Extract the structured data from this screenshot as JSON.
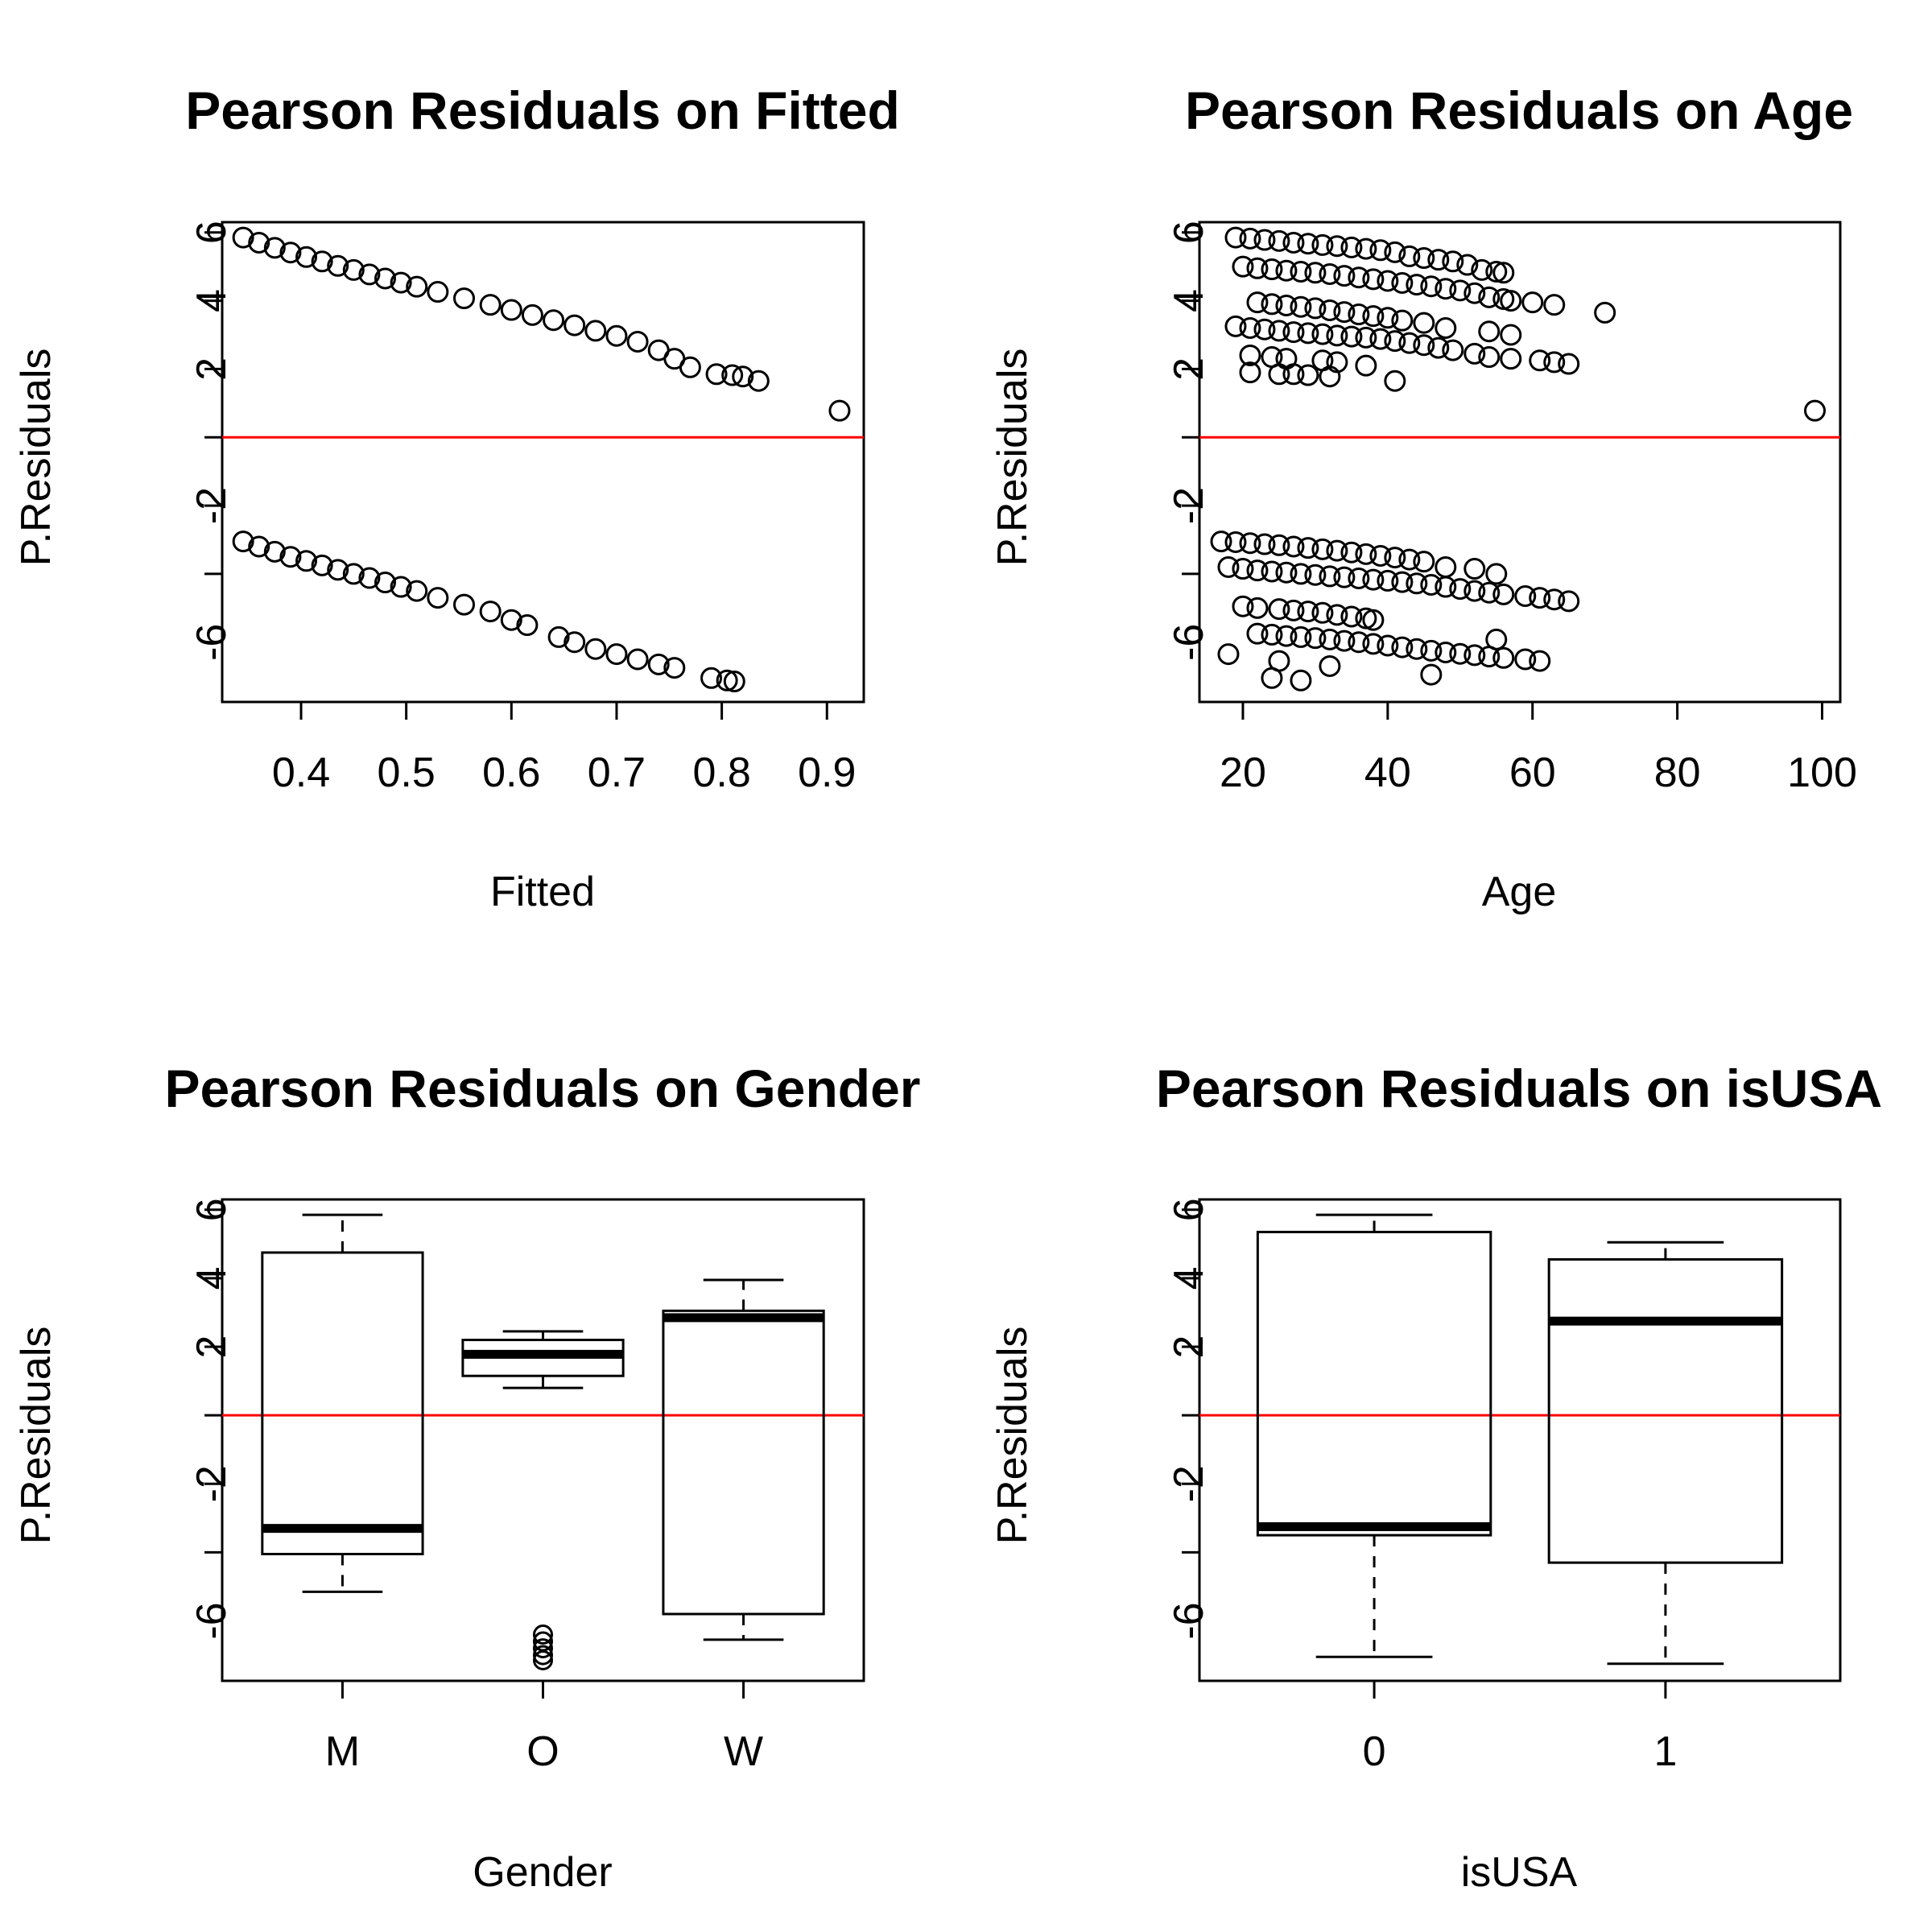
{
  "colors": {
    "reference_line": "#ff0000",
    "ink": "#000000"
  },
  "chart_data": [
    {
      "type": "scatter",
      "title": "Pearson Residuals on Fitted",
      "xlabel": "Fitted",
      "ylabel": "P.Residuals",
      "xlim": [
        0.325,
        0.935
      ],
      "ylim": [
        -7.75,
        6.3
      ],
      "xticks": [
        0.4,
        0.5,
        0.6,
        0.7,
        0.8,
        0.9
      ],
      "xtick_labels": [
        "0.4",
        "0.5",
        "0.6",
        "0.7",
        "0.8",
        "0.9"
      ],
      "yticks": [
        6,
        4,
        2,
        -2,
        -6
      ],
      "ytick_labels": [
        "6",
        "4",
        "2",
        "-2",
        "-6"
      ],
      "hline": 0,
      "series": [
        {
          "points": [
            [
              0.345,
              5.85
            ],
            [
              0.36,
              5.7
            ],
            [
              0.375,
              5.55
            ],
            [
              0.39,
              5.41
            ],
            [
              0.405,
              5.28
            ],
            [
              0.42,
              5.15
            ],
            [
              0.435,
              5.02
            ],
            [
              0.45,
              4.9
            ],
            [
              0.465,
              4.77
            ],
            [
              0.48,
              4.65
            ],
            [
              0.495,
              4.53
            ],
            [
              0.51,
              4.41
            ],
            [
              0.53,
              4.26
            ],
            [
              0.555,
              4.07
            ],
            [
              0.58,
              3.88
            ],
            [
              0.6,
              3.73
            ],
            [
              0.62,
              3.58
            ],
            [
              0.64,
              3.43
            ],
            [
              0.66,
              3.28
            ],
            [
              0.68,
              3.12
            ],
            [
              0.7,
              2.97
            ],
            [
              0.72,
              2.8
            ],
            [
              0.74,
              2.55
            ],
            [
              0.755,
              2.3
            ],
            [
              0.77,
              2.05
            ],
            [
              0.795,
              1.85
            ],
            [
              0.81,
              1.82
            ],
            [
              0.82,
              1.78
            ],
            [
              0.835,
              1.65
            ],
            [
              0.912,
              0.78
            ],
            [
              0.345,
              -3.05
            ],
            [
              0.36,
              -3.2
            ],
            [
              0.375,
              -3.35
            ],
            [
              0.39,
              -3.5
            ],
            [
              0.405,
              -3.62
            ],
            [
              0.42,
              -3.75
            ],
            [
              0.435,
              -3.88
            ],
            [
              0.45,
              -4.0
            ],
            [
              0.465,
              -4.12
            ],
            [
              0.48,
              -4.25
            ],
            [
              0.495,
              -4.38
            ],
            [
              0.51,
              -4.5
            ],
            [
              0.53,
              -4.7
            ],
            [
              0.555,
              -4.9
            ],
            [
              0.58,
              -5.1
            ],
            [
              0.6,
              -5.35
            ],
            [
              0.615,
              -5.5
            ],
            [
              0.645,
              -5.85
            ],
            [
              0.66,
              -6.0
            ],
            [
              0.68,
              -6.2
            ],
            [
              0.7,
              -6.35
            ],
            [
              0.72,
              -6.5
            ],
            [
              0.74,
              -6.65
            ],
            [
              0.755,
              -6.75
            ],
            [
              0.79,
              -7.05
            ],
            [
              0.805,
              -7.12
            ],
            [
              0.812,
              -7.15
            ]
          ]
        }
      ]
    },
    {
      "type": "scatter",
      "title": "Pearson Residuals on Age",
      "xlabel": "Age",
      "ylabel": "P.Residuals",
      "xlim": [
        14,
        102.5
      ],
      "ylim": [
        -7.75,
        6.3
      ],
      "xticks": [
        20,
        40,
        60,
        80,
        100
      ],
      "xtick_labels": [
        "20",
        "40",
        "60",
        "80",
        "100"
      ],
      "yticks": [
        6,
        4,
        2,
        -2,
        -6
      ],
      "ytick_labels": [
        "6",
        "4",
        "2",
        "-2",
        "-6"
      ],
      "hline": 0,
      "series": [
        {
          "points": [
            [
              19,
              5.85
            ],
            [
              21,
              5.82
            ],
            [
              23,
              5.78
            ],
            [
              25,
              5.75
            ],
            [
              27,
              5.7
            ],
            [
              29,
              5.67
            ],
            [
              31,
              5.63
            ],
            [
              33,
              5.6
            ],
            [
              35,
              5.56
            ],
            [
              37,
              5.52
            ],
            [
              39,
              5.48
            ],
            [
              41,
              5.42
            ],
            [
              43,
              5.3
            ],
            [
              45,
              5.25
            ],
            [
              47,
              5.2
            ],
            [
              49,
              5.15
            ],
            [
              51,
              5.05
            ],
            [
              53,
              4.9
            ],
            [
              55,
              4.85
            ],
            [
              56,
              4.82
            ],
            [
              20,
              5.0
            ],
            [
              22,
              4.95
            ],
            [
              24,
              4.92
            ],
            [
              26,
              4.88
            ],
            [
              28,
              4.85
            ],
            [
              30,
              4.82
            ],
            [
              32,
              4.78
            ],
            [
              34,
              4.73
            ],
            [
              36,
              4.68
            ],
            [
              38,
              4.63
            ],
            [
              40,
              4.58
            ],
            [
              42,
              4.52
            ],
            [
              44,
              4.47
            ],
            [
              46,
              4.42
            ],
            [
              48,
              4.35
            ],
            [
              50,
              4.3
            ],
            [
              52,
              4.22
            ],
            [
              54,
              4.1
            ],
            [
              56,
              4.05
            ],
            [
              57,
              4.0
            ],
            [
              60,
              3.95
            ],
            [
              63,
              3.88
            ],
            [
              70,
              3.65
            ],
            [
              22,
              3.95
            ],
            [
              24,
              3.9
            ],
            [
              26,
              3.86
            ],
            [
              28,
              3.82
            ],
            [
              30,
              3.78
            ],
            [
              32,
              3.72
            ],
            [
              34,
              3.67
            ],
            [
              36,
              3.6
            ],
            [
              38,
              3.55
            ],
            [
              40,
              3.5
            ],
            [
              42,
              3.42
            ],
            [
              45,
              3.35
            ],
            [
              48,
              3.2
            ],
            [
              54,
              3.1
            ],
            [
              57,
              3.0
            ],
            [
              19,
              3.25
            ],
            [
              21,
              3.2
            ],
            [
              23,
              3.16
            ],
            [
              25,
              3.12
            ],
            [
              27,
              3.08
            ],
            [
              29,
              3.05
            ],
            [
              31,
              3.02
            ],
            [
              33,
              2.98
            ],
            [
              35,
              2.95
            ],
            [
              37,
              2.92
            ],
            [
              39,
              2.88
            ],
            [
              41,
              2.82
            ],
            [
              43,
              2.76
            ],
            [
              45,
              2.7
            ],
            [
              47,
              2.62
            ],
            [
              49,
              2.55
            ],
            [
              52,
              2.45
            ],
            [
              54,
              2.35
            ],
            [
              57,
              2.3
            ],
            [
              61,
              2.25
            ],
            [
              63,
              2.2
            ],
            [
              65,
              2.15
            ],
            [
              21,
              2.4
            ],
            [
              24,
              2.35
            ],
            [
              26,
              2.3
            ],
            [
              31,
              2.25
            ],
            [
              33,
              2.2
            ],
            [
              37,
              2.1
            ],
            [
              21,
              1.9
            ],
            [
              25,
              1.85
            ],
            [
              27,
              1.85
            ],
            [
              29,
              1.82
            ],
            [
              32,
              1.78
            ],
            [
              41,
              1.65
            ],
            [
              99,
              0.78
            ],
            [
              17,
              -3.05
            ],
            [
              19,
              -3.07
            ],
            [
              21,
              -3.1
            ],
            [
              23,
              -3.13
            ],
            [
              25,
              -3.16
            ],
            [
              27,
              -3.2
            ],
            [
              29,
              -3.24
            ],
            [
              31,
              -3.28
            ],
            [
              33,
              -3.32
            ],
            [
              35,
              -3.37
            ],
            [
              37,
              -3.42
            ],
            [
              39,
              -3.47
            ],
            [
              41,
              -3.52
            ],
            [
              43,
              -3.58
            ],
            [
              45,
              -3.64
            ],
            [
              18,
              -3.8
            ],
            [
              20,
              -3.85
            ],
            [
              22,
              -3.9
            ],
            [
              24,
              -3.93
            ],
            [
              26,
              -3.96
            ],
            [
              28,
              -4.0
            ],
            [
              30,
              -4.03
            ],
            [
              32,
              -4.07
            ],
            [
              34,
              -4.1
            ],
            [
              36,
              -4.13
            ],
            [
              38,
              -4.17
            ],
            [
              40,
              -4.2
            ],
            [
              42,
              -4.24
            ],
            [
              44,
              -4.28
            ],
            [
              46,
              -4.32
            ],
            [
              48,
              -4.38
            ],
            [
              50,
              -4.44
            ],
            [
              52,
              -4.5
            ],
            [
              54,
              -4.55
            ],
            [
              56,
              -4.6
            ],
            [
              59,
              -4.65
            ],
            [
              61,
              -4.7
            ],
            [
              63,
              -4.75
            ],
            [
              65,
              -4.8
            ],
            [
              48,
              -3.8
            ],
            [
              52,
              -3.85
            ],
            [
              55,
              -4.0
            ],
            [
              20,
              -4.95
            ],
            [
              22,
              -5.0
            ],
            [
              25,
              -5.03
            ],
            [
              27,
              -5.07
            ],
            [
              29,
              -5.1
            ],
            [
              31,
              -5.14
            ],
            [
              33,
              -5.2
            ],
            [
              35,
              -5.25
            ],
            [
              37,
              -5.3
            ],
            [
              38,
              -5.35
            ],
            [
              22,
              -5.75
            ],
            [
              24,
              -5.78
            ],
            [
              26,
              -5.82
            ],
            [
              28,
              -5.85
            ],
            [
              30,
              -5.88
            ],
            [
              32,
              -5.92
            ],
            [
              34,
              -5.96
            ],
            [
              36,
              -6.0
            ],
            [
              38,
              -6.05
            ],
            [
              40,
              -6.1
            ],
            [
              42,
              -6.15
            ],
            [
              44,
              -6.2
            ],
            [
              46,
              -6.25
            ],
            [
              48,
              -6.3
            ],
            [
              50,
              -6.34
            ],
            [
              52,
              -6.38
            ],
            [
              54,
              -6.42
            ],
            [
              56,
              -6.46
            ],
            [
              59,
              -6.5
            ],
            [
              61,
              -6.55
            ],
            [
              55,
              -5.92
            ],
            [
              18,
              -6.35
            ],
            [
              25,
              -6.55
            ],
            [
              32,
              -6.7
            ],
            [
              24,
              -7.05
            ],
            [
              28,
              -7.12
            ],
            [
              46,
              -6.95
            ]
          ]
        }
      ]
    },
    {
      "type": "box",
      "title": "Pearson Residuals on Gender",
      "xlabel": "Gender",
      "ylabel": "P.Residuals",
      "ylim": [
        -7.75,
        6.3
      ],
      "yticks": [
        6,
        4,
        2,
        -2,
        -6
      ],
      "ytick_labels": [
        "6",
        "4",
        "2",
        "-2",
        "-6"
      ],
      "hline": 0,
      "categories": [
        "M",
        "O",
        "W"
      ],
      "boxes": [
        {
          "label": "M",
          "lower_whisker": -5.15,
          "q1": -4.05,
          "median": -3.3,
          "q3": 4.75,
          "upper_whisker": 5.85,
          "outliers": []
        },
        {
          "label": "O",
          "lower_whisker": 0.8,
          "q1": 1.15,
          "median": 1.78,
          "q3": 2.2,
          "upper_whisker": 2.45,
          "outliers": [
            -6.4,
            -6.6,
            -6.8,
            -7.0,
            -7.15
          ]
        },
        {
          "label": "W",
          "lower_whisker": -6.55,
          "q1": -5.8,
          "median": 2.85,
          "q3": 3.05,
          "upper_whisker": 3.95,
          "outliers": []
        }
      ]
    },
    {
      "type": "box",
      "title": "Pearson Residuals on isUSA",
      "xlabel": "isUSA",
      "ylabel": "P.Residuals",
      "ylim": [
        -7.75,
        6.3
      ],
      "yticks": [
        6,
        4,
        2,
        -2,
        -6
      ],
      "ytick_labels": [
        "6",
        "4",
        "2",
        "-2",
        "-6"
      ],
      "hline": 0,
      "categories": [
        "0",
        "1"
      ],
      "boxes": [
        {
          "label": "0",
          "lower_whisker": -7.05,
          "q1": -3.5,
          "median": -3.25,
          "q3": 5.35,
          "upper_whisker": 5.85,
          "outliers": []
        },
        {
          "label": "1",
          "lower_whisker": -7.25,
          "q1": -4.3,
          "median": 2.75,
          "q3": 4.55,
          "upper_whisker": 5.05,
          "outliers": []
        }
      ]
    }
  ]
}
